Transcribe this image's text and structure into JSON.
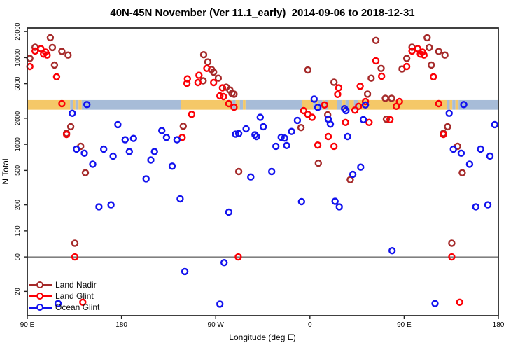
{
  "chart_data": {
    "type": "scatter",
    "title": "40N-45N November (Ver 11.1_early)  2014-09-06 to 2018-12-31",
    "xlabel": "Longitude (deg E)",
    "ylabel": "N Total",
    "x_axis": {
      "range": [
        90,
        540
      ],
      "ticks": [
        {
          "value": 90,
          "label": "90 E"
        },
        {
          "value": 180,
          "label": "180"
        },
        {
          "value": 270,
          "label": "90 W"
        },
        {
          "value": 360,
          "label": "0"
        },
        {
          "value": 450,
          "label": "90 E"
        },
        {
          "value": 540,
          "label": "180"
        }
      ]
    },
    "y_axis": {
      "scale": "log",
      "range": [
        10.5,
        22000
      ],
      "ticks": [
        {
          "value": 20000,
          "label": "20000"
        },
        {
          "value": 10000,
          "label": "10000"
        },
        {
          "value": 5000,
          "label": "5000"
        },
        {
          "value": 2000,
          "label": "2000"
        },
        {
          "value": 1000,
          "label": "1000"
        },
        {
          "value": 500,
          "label": "500"
        },
        {
          "value": 200,
          "label": "200"
        },
        {
          "value": 100,
          "label": "100"
        },
        {
          "value": 50,
          "label": "50"
        },
        {
          "value": 20,
          "label": "20"
        }
      ]
    },
    "reference_line_y": 50,
    "wrap_duplicate_max_lon": 180,
    "land_ocean_band": {
      "value_top": 3240,
      "value_bottom": 2510,
      "land_color": "#F5C868",
      "ocean_color": "#A7BCD8",
      "segments": [
        [
          90,
          131,
          "land"
        ],
        [
          131,
          133.5,
          "ocean"
        ],
        [
          133.5,
          136,
          "land"
        ],
        [
          136,
          139,
          "ocean"
        ],
        [
          139,
          142,
          "land"
        ],
        [
          142,
          236.5,
          "ocean"
        ],
        [
          236.5,
          286,
          "land"
        ],
        [
          286,
          289,
          "ocean"
        ],
        [
          289,
          293,
          "land"
        ],
        [
          293,
          296,
          "ocean"
        ],
        [
          296,
          298.5,
          "land"
        ],
        [
          298.5,
          352.5,
          "ocean"
        ],
        [
          352.5,
          363,
          "land"
        ],
        [
          363,
          366,
          "ocean"
        ],
        [
          366,
          368,
          "land"
        ],
        [
          368,
          372,
          "ocean"
        ],
        [
          372,
          374,
          "land"
        ],
        [
          374,
          377,
          "ocean"
        ],
        [
          377,
          386,
          "land"
        ],
        [
          386,
          391,
          "ocean"
        ],
        [
          391,
          394,
          "land"
        ],
        [
          394,
          397,
          "ocean"
        ],
        [
          397,
          402,
          "land"
        ],
        [
          402,
          406,
          "ocean"
        ],
        [
          406,
          491,
          "land"
        ],
        [
          491,
          493.5,
          "ocean"
        ],
        [
          493.5,
          496,
          "land"
        ],
        [
          496,
          499,
          "ocean"
        ],
        [
          499,
          502,
          "land"
        ],
        [
          502,
          540,
          "ocean"
        ]
      ]
    },
    "series": [
      {
        "name": "Land Nadir",
        "color": "#A52A2A",
        "points": [
          [
            112,
            17000
          ],
          [
            97.5,
            13200
          ],
          [
            114,
            13100
          ],
          [
            123,
            11800
          ],
          [
            129,
            10700
          ],
          [
            92.5,
            9800
          ],
          [
            116,
            8200
          ],
          [
            131.5,
            1600
          ],
          [
            127.5,
            1340
          ],
          [
            141,
            950
          ],
          [
            145.5,
            470
          ],
          [
            135.5,
            72
          ],
          [
            258.5,
            10800
          ],
          [
            262.5,
            8900
          ],
          [
            266,
            7300
          ],
          [
            268,
            6800
          ],
          [
            272.5,
            5800
          ],
          [
            258,
            5400
          ],
          [
            280,
            4560
          ],
          [
            283.5,
            4230
          ],
          [
            285.5,
            3860
          ],
          [
            287.5,
            3790
          ],
          [
            239,
            1620
          ],
          [
            292,
            485
          ],
          [
            358,
            7200
          ],
          [
            423,
            15800
          ],
          [
            428,
            7500
          ],
          [
            418.5,
            5800
          ],
          [
            448,
            7400
          ],
          [
            383,
            5200
          ],
          [
            415,
            3800
          ],
          [
            377,
            2190
          ],
          [
            351.5,
            1560
          ],
          [
            433,
            1950
          ],
          [
            432,
            3400
          ],
          [
            438,
            3400
          ],
          [
            368,
            605
          ],
          [
            398.5,
            390
          ]
        ]
      },
      {
        "name": "Land Glint",
        "color": "#FB0006",
        "points": [
          [
            103,
            12700
          ],
          [
            107.5,
            11600
          ],
          [
            97.5,
            11900
          ],
          [
            105.5,
            11000
          ],
          [
            109,
            10700
          ],
          [
            92.5,
            7900
          ],
          [
            118,
            6000
          ],
          [
            123,
            2950
          ],
          [
            127.5,
            1300
          ],
          [
            135.5,
            50
          ],
          [
            143,
            15
          ],
          [
            261.5,
            7500
          ],
          [
            254,
            6250
          ],
          [
            243,
            5700
          ],
          [
            253,
            5150
          ],
          [
            242.5,
            5050
          ],
          [
            268,
            5150
          ],
          [
            276.5,
            4480
          ],
          [
            274,
            3620
          ],
          [
            277.5,
            3550
          ],
          [
            282.5,
            2950
          ],
          [
            287.5,
            2680
          ],
          [
            247,
            2220
          ],
          [
            238,
            1200
          ],
          [
            291.5,
            50
          ],
          [
            423,
            9200
          ],
          [
            428.5,
            6100
          ],
          [
            387.5,
            4480
          ],
          [
            386.5,
            3770
          ],
          [
            408,
            4670
          ],
          [
            374,
            2850
          ],
          [
            354,
            2450
          ],
          [
            358,
            2220
          ],
          [
            362,
            2050
          ],
          [
            403,
            2480
          ],
          [
            406.5,
            2750
          ],
          [
            413,
            3120
          ],
          [
            394,
            1790
          ],
          [
            367.5,
            980
          ],
          [
            377.5,
            1230
          ],
          [
            416.5,
            1790
          ],
          [
            436.5,
            1930
          ],
          [
            445.5,
            3120
          ],
          [
            442.5,
            2750
          ],
          [
            383,
            950
          ]
        ]
      },
      {
        "name": "Ocean Glint",
        "color": "#1212EE",
        "points": [
          [
            133,
            2280
          ],
          [
            147,
            2880
          ],
          [
            137,
            880
          ],
          [
            144.5,
            790
          ],
          [
            152.5,
            590
          ],
          [
            163,
            880
          ],
          [
            172,
            730
          ],
          [
            176.5,
            1690
          ],
          [
            158.5,
            190
          ],
          [
            170,
            200
          ],
          [
            119.5,
            14.5
          ],
          [
            183.5,
            1130
          ],
          [
            191.5,
            1170
          ],
          [
            187.5,
            825
          ],
          [
            203.5,
            400
          ],
          [
            208,
            660
          ],
          [
            211.5,
            825
          ],
          [
            218.5,
            1440
          ],
          [
            223,
            1200
          ],
          [
            228.5,
            560
          ],
          [
            233,
            1130
          ],
          [
            236,
            235
          ],
          [
            240.5,
            34
          ],
          [
            282.5,
            165
          ],
          [
            278,
            43
          ],
          [
            274,
            14.3
          ],
          [
            289,
            1310
          ],
          [
            292,
            1330
          ],
          [
            299,
            1510
          ],
          [
            303.5,
            420
          ],
          [
            307.5,
            1290
          ],
          [
            309,
            1230
          ],
          [
            312.5,
            2050
          ],
          [
            315.5,
            1600
          ],
          [
            323.5,
            485
          ],
          [
            327.5,
            950
          ],
          [
            332.5,
            1210
          ],
          [
            335.8,
            1180
          ],
          [
            337.8,
            970
          ],
          [
            342.5,
            1410
          ],
          [
            348,
            1890
          ],
          [
            352,
            218
          ],
          [
            364,
            3330
          ],
          [
            367.5,
            2670
          ],
          [
            377.5,
            1950
          ],
          [
            379.5,
            1710
          ],
          [
            384,
            220
          ],
          [
            388,
            190
          ],
          [
            393,
            2580
          ],
          [
            394.5,
            2450
          ],
          [
            396,
            1230
          ],
          [
            401,
            450
          ],
          [
            408.5,
            545
          ],
          [
            411,
            1930
          ],
          [
            413,
            2850
          ],
          [
            438.5,
            59
          ]
        ]
      }
    ],
    "legend_position": "bottom-left"
  }
}
